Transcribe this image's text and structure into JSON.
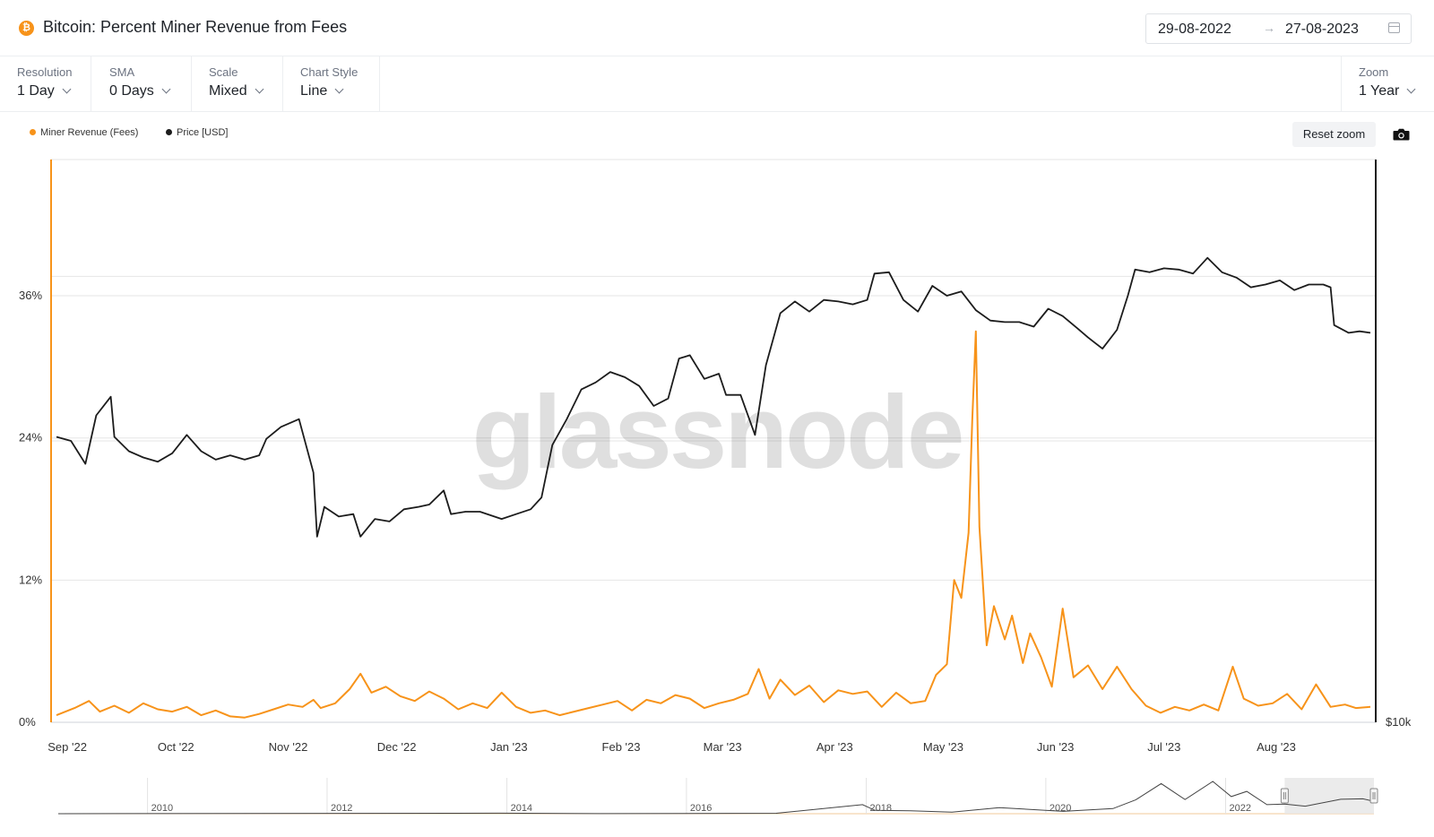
{
  "header": {
    "coin_icon": "bitcoin-icon",
    "coin_glyph": "₿",
    "title": "Bitcoin: Percent Miner Revenue from Fees",
    "date_from": "29-08-2022",
    "date_arrow": "→",
    "date_to": "27-08-2023",
    "calendar_icon": "calendar-icon"
  },
  "controls": {
    "resolution": {
      "label": "Resolution",
      "value": "1 Day"
    },
    "sma": {
      "label": "SMA",
      "value": "0 Days"
    },
    "scale": {
      "label": "Scale",
      "value": "Mixed"
    },
    "chart_style": {
      "label": "Chart Style",
      "value": "Line"
    },
    "zoom": {
      "label": "Zoom",
      "value": "1 Year"
    }
  },
  "toolbar": {
    "reset_zoom": "Reset zoom",
    "camera_icon": "camera-icon"
  },
  "watermark": "glassnode",
  "colors": {
    "fees": "#f7931a",
    "price": "#1c1c1c",
    "grid": "#e6e6e6",
    "navigator_mask": "#e8e8e8"
  },
  "chart_data": {
    "type": "line",
    "title": "Bitcoin: Percent Miner Revenue from Fees",
    "x_range": [
      "2022-08-29",
      "2023-08-27"
    ],
    "x_tick_labels": [
      "Sep '22",
      "Oct '22",
      "Nov '22",
      "Dec '22",
      "Jan '23",
      "Feb '23",
      "Mar '23",
      "Apr '23",
      "May '23",
      "Jun '23",
      "Jul '23",
      "Aug '23"
    ],
    "y_left": {
      "tick_labels": [
        "0%",
        "12%",
        "24%",
        "36%"
      ],
      "ticks": [
        0,
        12,
        24,
        36
      ],
      "range": [
        0,
        47.5
      ]
    },
    "y_right": {
      "scale": "log",
      "tick_labels": [
        "$10k"
      ],
      "ticks": [
        10000
      ],
      "range": [
        10000,
        40000
      ]
    },
    "legend": {
      "placement": "top-left",
      "entries": [
        "Miner Revenue (Fees)",
        "Price [USD]"
      ]
    },
    "grid": true,
    "series": [
      {
        "name": "Miner Revenue (Fees)",
        "axis": "left",
        "points": [
          [
            "2022-08-29",
            0.6
          ],
          [
            "2022-09-03",
            1.2
          ],
          [
            "2022-09-07",
            1.8
          ],
          [
            "2022-09-10",
            0.9
          ],
          [
            "2022-09-14",
            1.4
          ],
          [
            "2022-09-18",
            0.8
          ],
          [
            "2022-09-22",
            1.6
          ],
          [
            "2022-09-26",
            1.1
          ],
          [
            "2022-09-30",
            0.9
          ],
          [
            "2022-10-04",
            1.3
          ],
          [
            "2022-10-08",
            0.6
          ],
          [
            "2022-10-12",
            1.0
          ],
          [
            "2022-10-16",
            0.5
          ],
          [
            "2022-10-20",
            0.4
          ],
          [
            "2022-10-24",
            0.7
          ],
          [
            "2022-10-28",
            1.1
          ],
          [
            "2022-11-01",
            1.5
          ],
          [
            "2022-11-05",
            1.3
          ],
          [
            "2022-11-08",
            1.9
          ],
          [
            "2022-11-10",
            1.2
          ],
          [
            "2022-11-14",
            1.6
          ],
          [
            "2022-11-18",
            2.8
          ],
          [
            "2022-11-21",
            4.1
          ],
          [
            "2022-11-24",
            2.5
          ],
          [
            "2022-11-28",
            3.0
          ],
          [
            "2022-12-02",
            2.2
          ],
          [
            "2022-12-06",
            1.8
          ],
          [
            "2022-12-10",
            2.6
          ],
          [
            "2022-12-14",
            2.0
          ],
          [
            "2022-12-18",
            1.1
          ],
          [
            "2022-12-22",
            1.6
          ],
          [
            "2022-12-26",
            1.2
          ],
          [
            "2022-12-30",
            2.5
          ],
          [
            "2023-01-03",
            1.3
          ],
          [
            "2023-01-07",
            0.8
          ],
          [
            "2023-01-11",
            1.0
          ],
          [
            "2023-01-15",
            0.6
          ],
          [
            "2023-01-19",
            0.9
          ],
          [
            "2023-01-23",
            1.2
          ],
          [
            "2023-01-27",
            1.5
          ],
          [
            "2023-01-31",
            1.8
          ],
          [
            "2023-02-04",
            1.0
          ],
          [
            "2023-02-08",
            1.9
          ],
          [
            "2023-02-12",
            1.6
          ],
          [
            "2023-02-16",
            2.3
          ],
          [
            "2023-02-20",
            2.0
          ],
          [
            "2023-02-24",
            1.2
          ],
          [
            "2023-02-28",
            1.6
          ],
          [
            "2023-03-04",
            1.9
          ],
          [
            "2023-03-08",
            2.4
          ],
          [
            "2023-03-11",
            4.5
          ],
          [
            "2023-03-14",
            2.0
          ],
          [
            "2023-03-17",
            3.6
          ],
          [
            "2023-03-21",
            2.3
          ],
          [
            "2023-03-25",
            3.1
          ],
          [
            "2023-03-29",
            1.7
          ],
          [
            "2023-04-02",
            2.7
          ],
          [
            "2023-04-06",
            2.4
          ],
          [
            "2023-04-10",
            2.6
          ],
          [
            "2023-04-14",
            1.3
          ],
          [
            "2023-04-18",
            2.5
          ],
          [
            "2023-04-22",
            1.6
          ],
          [
            "2023-04-26",
            1.8
          ],
          [
            "2023-04-29",
            4.0
          ],
          [
            "2023-05-02",
            4.9
          ],
          [
            "2023-05-04",
            12.0
          ],
          [
            "2023-05-06",
            10.5
          ],
          [
            "2023-05-08",
            16.0
          ],
          [
            "2023-05-09",
            25.5
          ],
          [
            "2023-05-10",
            33.0
          ],
          [
            "2023-05-11",
            16.5
          ],
          [
            "2023-05-13",
            6.5
          ],
          [
            "2023-05-15",
            9.8
          ],
          [
            "2023-05-18",
            7.0
          ],
          [
            "2023-05-20",
            9.0
          ],
          [
            "2023-05-23",
            5.0
          ],
          [
            "2023-05-25",
            7.5
          ],
          [
            "2023-05-28",
            5.5
          ],
          [
            "2023-05-31",
            3.0
          ],
          [
            "2023-06-03",
            9.6
          ],
          [
            "2023-06-06",
            3.8
          ],
          [
            "2023-06-10",
            4.8
          ],
          [
            "2023-06-14",
            2.8
          ],
          [
            "2023-06-18",
            4.7
          ],
          [
            "2023-06-22",
            2.8
          ],
          [
            "2023-06-26",
            1.4
          ],
          [
            "2023-06-30",
            0.8
          ],
          [
            "2023-07-04",
            1.3
          ],
          [
            "2023-07-08",
            1.0
          ],
          [
            "2023-07-12",
            1.5
          ],
          [
            "2023-07-16",
            1.0
          ],
          [
            "2023-07-20",
            4.7
          ],
          [
            "2023-07-23",
            2.0
          ],
          [
            "2023-07-27",
            1.4
          ],
          [
            "2023-07-31",
            1.6
          ],
          [
            "2023-08-04",
            2.4
          ],
          [
            "2023-08-08",
            1.1
          ],
          [
            "2023-08-12",
            3.2
          ],
          [
            "2023-08-16",
            1.3
          ],
          [
            "2023-08-20",
            1.5
          ],
          [
            "2023-08-23",
            1.2
          ],
          [
            "2023-08-27",
            1.3
          ]
        ]
      },
      {
        "name": "Price [USD]",
        "axis": "right",
        "points": [
          [
            "2022-08-29",
            20200
          ],
          [
            "2022-09-02",
            20000
          ],
          [
            "2022-09-06",
            18900
          ],
          [
            "2022-09-09",
            21300
          ],
          [
            "2022-09-13",
            22300
          ],
          [
            "2022-09-14",
            20200
          ],
          [
            "2022-09-18",
            19500
          ],
          [
            "2022-09-22",
            19200
          ],
          [
            "2022-09-26",
            19000
          ],
          [
            "2022-09-30",
            19400
          ],
          [
            "2022-10-04",
            20300
          ],
          [
            "2022-10-08",
            19500
          ],
          [
            "2022-10-12",
            19100
          ],
          [
            "2022-10-16",
            19300
          ],
          [
            "2022-10-20",
            19100
          ],
          [
            "2022-10-24",
            19300
          ],
          [
            "2022-10-26",
            20100
          ],
          [
            "2022-10-30",
            20700
          ],
          [
            "2022-11-04",
            21100
          ],
          [
            "2022-11-08",
            18500
          ],
          [
            "2022-11-09",
            15800
          ],
          [
            "2022-11-11",
            17000
          ],
          [
            "2022-11-15",
            16600
          ],
          [
            "2022-11-19",
            16700
          ],
          [
            "2022-11-21",
            15800
          ],
          [
            "2022-11-25",
            16500
          ],
          [
            "2022-11-29",
            16400
          ],
          [
            "2022-12-03",
            16900
          ],
          [
            "2022-12-07",
            17000
          ],
          [
            "2022-12-10",
            17100
          ],
          [
            "2022-12-14",
            17700
          ],
          [
            "2022-12-16",
            16700
          ],
          [
            "2022-12-20",
            16800
          ],
          [
            "2022-12-24",
            16800
          ],
          [
            "2022-12-30",
            16500
          ],
          [
            "2023-01-03",
            16700
          ],
          [
            "2023-01-07",
            16900
          ],
          [
            "2023-01-10",
            17400
          ],
          [
            "2023-01-13",
            19800
          ],
          [
            "2023-01-17",
            21100
          ],
          [
            "2023-01-21",
            22700
          ],
          [
            "2023-01-25",
            23100
          ],
          [
            "2023-01-29",
            23700
          ],
          [
            "2023-02-02",
            23400
          ],
          [
            "2023-02-06",
            22900
          ],
          [
            "2023-02-10",
            21800
          ],
          [
            "2023-02-14",
            22200
          ],
          [
            "2023-02-17",
            24500
          ],
          [
            "2023-02-20",
            24700
          ],
          [
            "2023-02-24",
            23300
          ],
          [
            "2023-02-28",
            23600
          ],
          [
            "2023-03-02",
            22400
          ],
          [
            "2023-03-06",
            22400
          ],
          [
            "2023-03-10",
            20300
          ],
          [
            "2023-03-13",
            24100
          ],
          [
            "2023-03-17",
            27400
          ],
          [
            "2023-03-21",
            28200
          ],
          [
            "2023-03-25",
            27500
          ],
          [
            "2023-03-29",
            28300
          ],
          [
            "2023-04-02",
            28200
          ],
          [
            "2023-04-06",
            28000
          ],
          [
            "2023-04-10",
            28300
          ],
          [
            "2023-04-12",
            30200
          ],
          [
            "2023-04-16",
            30300
          ],
          [
            "2023-04-20",
            28300
          ],
          [
            "2023-04-24",
            27500
          ],
          [
            "2023-04-28",
            29300
          ],
          [
            "2023-05-02",
            28600
          ],
          [
            "2023-05-06",
            28900
          ],
          [
            "2023-05-10",
            27600
          ],
          [
            "2023-05-14",
            26900
          ],
          [
            "2023-05-18",
            26800
          ],
          [
            "2023-05-22",
            26800
          ],
          [
            "2023-05-26",
            26500
          ],
          [
            "2023-05-30",
            27700
          ],
          [
            "2023-06-03",
            27200
          ],
          [
            "2023-06-07",
            26400
          ],
          [
            "2023-06-10",
            25800
          ],
          [
            "2023-06-14",
            25100
          ],
          [
            "2023-06-18",
            26300
          ],
          [
            "2023-06-21",
            28600
          ],
          [
            "2023-06-23",
            30500
          ],
          [
            "2023-06-27",
            30300
          ],
          [
            "2023-07-01",
            30600
          ],
          [
            "2023-07-05",
            30500
          ],
          [
            "2023-07-09",
            30200
          ],
          [
            "2023-07-13",
            31400
          ],
          [
            "2023-07-17",
            30300
          ],
          [
            "2023-07-21",
            29900
          ],
          [
            "2023-07-25",
            29200
          ],
          [
            "2023-07-29",
            29400
          ],
          [
            "2023-08-02",
            29700
          ],
          [
            "2023-08-06",
            29000
          ],
          [
            "2023-08-10",
            29400
          ],
          [
            "2023-08-14",
            29400
          ],
          [
            "2023-08-16",
            29200
          ],
          [
            "2023-08-17",
            26600
          ],
          [
            "2023-08-21",
            26100
          ],
          [
            "2023-08-24",
            26200
          ],
          [
            "2023-08-27",
            26100
          ]
        ]
      }
    ],
    "navigator": {
      "year_labels": [
        "2010",
        "2012",
        "2014",
        "2016",
        "2018",
        "2020",
        "2022"
      ],
      "x_range": [
        "2009-01-03",
        "2023-08-27"
      ],
      "selection": [
        "2022-08-29",
        "2023-08-27"
      ],
      "price_points": [
        [
          "2009-01-03",
          0
        ],
        [
          "2013-11-30",
          1100
        ],
        [
          "2015-01-14",
          200
        ],
        [
          "2016-12-31",
          960
        ],
        [
          "2017-12-17",
          19000
        ],
        [
          "2018-02-06",
          7000
        ],
        [
          "2018-06-30",
          6300
        ],
        [
          "2018-12-15",
          3200
        ],
        [
          "2019-06-26",
          12900
        ],
        [
          "2019-12-31",
          7200
        ],
        [
          "2020-03-12",
          4900
        ],
        [
          "2020-09-30",
          10800
        ],
        [
          "2020-12-31",
          29000
        ],
        [
          "2021-04-14",
          63500
        ],
        [
          "2021-07-20",
          29800
        ],
        [
          "2021-11-10",
          68000
        ],
        [
          "2022-01-24",
          36000
        ],
        [
          "2022-03-28",
          47000
        ],
        [
          "2022-06-18",
          19000
        ],
        [
          "2022-08-29",
          20200
        ],
        [
          "2022-11-21",
          15800
        ],
        [
          "2023-04-14",
          30400
        ],
        [
          "2023-07-13",
          31400
        ],
        [
          "2023-08-27",
          26100
        ]
      ]
    }
  }
}
